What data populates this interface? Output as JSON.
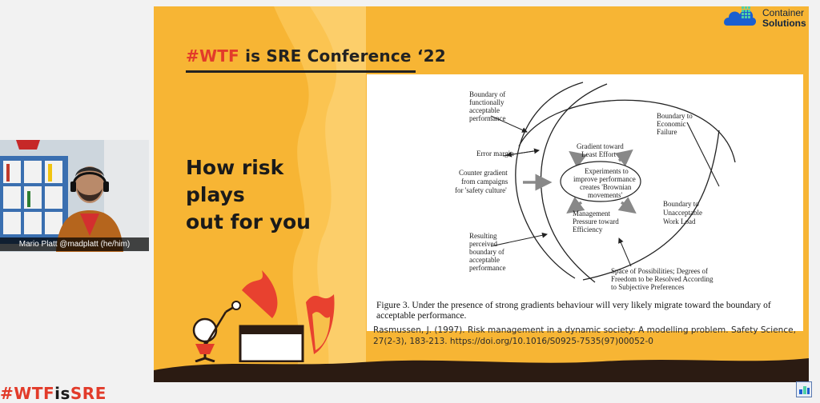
{
  "conference": {
    "hash": "#WTF",
    "rest": " is SRE Conference ‘22"
  },
  "slide": {
    "headline_line1": "How risk plays",
    "headline_line2": "out for you"
  },
  "figure": {
    "labels": {
      "functional_1": "Boundary of",
      "functional_2": "functionally",
      "functional_3": "acceptable",
      "functional_4": "performance",
      "error_margin": "Error margin",
      "counter_1": "Counter gradient",
      "counter_2": "from  campaigns",
      "counter_3": "for 'safety culture'",
      "gradient_1": "Gradient toward",
      "gradient_2": "Least Effort",
      "exp_1": "Experiments to",
      "exp_2": "improve performance",
      "exp_3": "creates 'Brownian",
      "exp_4": "movements'",
      "mgmt_1": "Management",
      "mgmt_2": "Pressure toward",
      "mgmt_3": "Efficiency",
      "econ_1": "Boundary to",
      "econ_2": "Economic",
      "econ_3": "Failure",
      "workload_1": "Boundary to",
      "workload_2": "Unacceptable",
      "workload_3": "Work Load",
      "perceived_1": "Resulting",
      "perceived_2": "perceived",
      "perceived_3": "boundary of",
      "perceived_4": "acceptable",
      "perceived_5": "performance",
      "space_1": "Space of Possibilities; Degrees of",
      "space_2": "Freedom to be Resolved According",
      "space_3": "to Subjective Preferences"
    },
    "caption": "Figure 3. Under the presence of strong gradients behaviour will very likely migrate toward the boundary of acceptable performance."
  },
  "reference": "Rasmussen, J. (1997). Risk management in a dynamic society: A modelling problem. Safety Science, 27(2-3), 183-213. https://doi.org/10.1016/S0925-7535(97)00052-0",
  "brand": {
    "line1": "Container",
    "line2": "Solutions"
  },
  "speaker": {
    "name_tag": "Mario Platt @madplatt (he/him)"
  },
  "bottom_tag": {
    "red": "#WTF",
    "black": "is",
    "red2": "SRE"
  },
  "colors": {
    "slide_bg": "#f7b534",
    "accent": "#e23b2a",
    "flame": "#fbc04a",
    "brand_blue": "#1a5fd0"
  }
}
